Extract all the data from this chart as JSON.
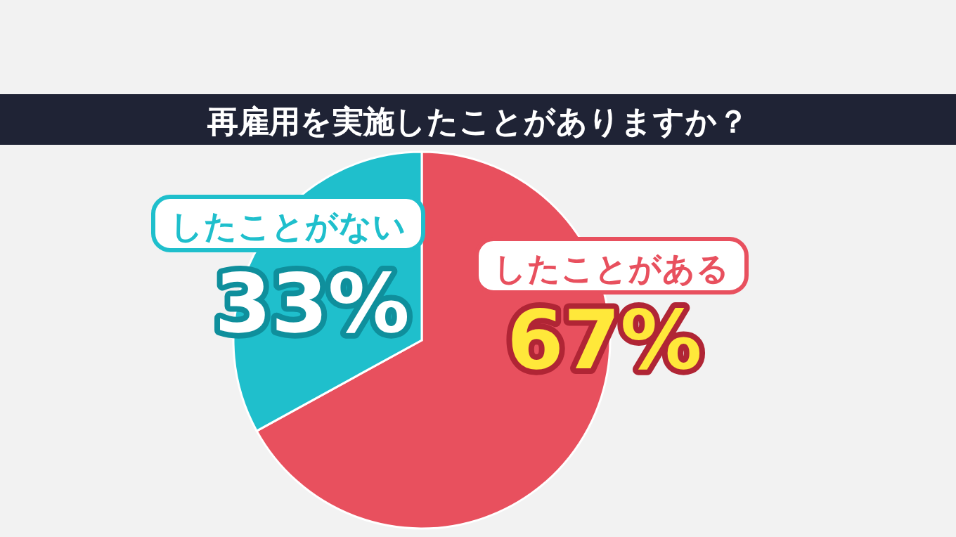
{
  "chart_data": {
    "type": "pie",
    "title": "再雇用を実施したことがありますか？",
    "categories": [
      "したことがある",
      "したことがない"
    ],
    "values": [
      67,
      33
    ],
    "colors": [
      "#e8505e",
      "#1fbfcc"
    ],
    "value_labels": [
      "67%",
      "33%"
    ],
    "legend": false
  }
}
